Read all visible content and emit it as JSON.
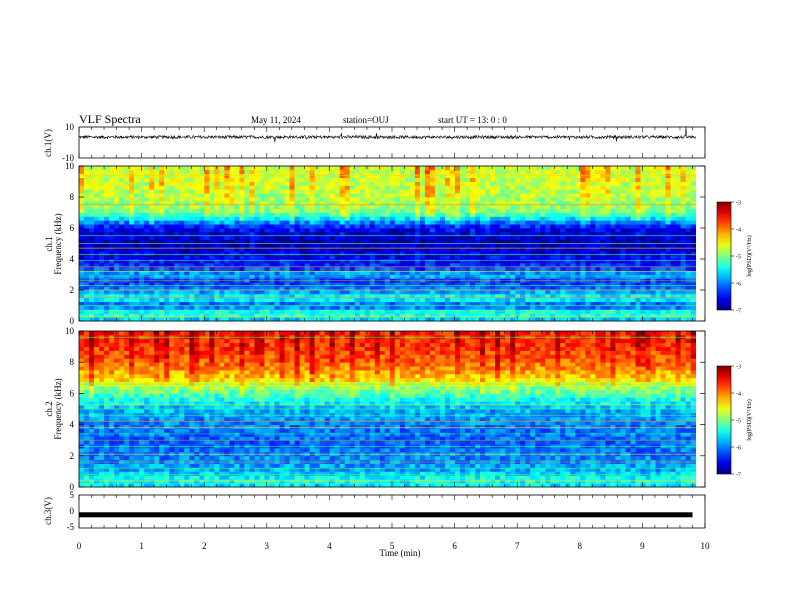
{
  "header": {
    "title": "VLF Spectra",
    "date": "May 11, 2024",
    "station": "station=OUJ",
    "start_label": "start  UT  =   13: 0   : 0"
  },
  "chart_data": [
    {
      "type": "line",
      "panel": "ch1-waveform",
      "ylabel": "ch.1(V)",
      "ylim": [
        -10,
        10
      ],
      "yticks": [
        "10",
        "-10"
      ],
      "xlim": [
        0,
        10
      ],
      "series": [
        {
          "values_description_level": 3.5,
          "noise_amplitude": 1
        }
      ],
      "color": "#000000"
    },
    {
      "type": "heatmap",
      "panel": "ch1-spectrogram",
      "ylabel_line1": "ch.1",
      "ylabel_line2": "Frequency (kHz)",
      "ylim": [
        0,
        10
      ],
      "yticks": [
        "0",
        "2",
        "4",
        "6",
        "8",
        "10"
      ],
      "xlim": [
        0,
        9.85
      ],
      "colorbar": {
        "label": "log(PSD)(V²/Hz)",
        "range": [
          -7,
          -3
        ],
        "ticks": [
          "-3",
          "-4",
          "-5",
          "-6",
          "-7"
        ]
      },
      "profile_kHz": [
        [
          0,
          -5.8
        ],
        [
          0.5,
          -5.2
        ],
        [
          1,
          -6.2
        ],
        [
          1.5,
          -5.4
        ],
        [
          2,
          -6.0
        ],
        [
          2.5,
          -6.3
        ],
        [
          3,
          -5.8
        ],
        [
          3.5,
          -6.3
        ],
        [
          4,
          -6.5
        ],
        [
          5,
          -6.8
        ],
        [
          6,
          -6.6
        ],
        [
          6.5,
          -5.8
        ],
        [
          7,
          -5.0
        ],
        [
          8,
          -4.8
        ],
        [
          9,
          -4.7
        ],
        [
          10,
          -4.7
        ]
      ],
      "lines_kHz": [
        0.3,
        0.6,
        1.0,
        1.5,
        2.0,
        2.3,
        2.6,
        2.9,
        3.2,
        3.5,
        3.9,
        4.3,
        4.7,
        5.0,
        5.5,
        7.5,
        9.4
      ]
    },
    {
      "type": "heatmap",
      "panel": "ch2-spectrogram",
      "ylabel_line1": "ch.2",
      "ylabel_line2": "Frequency (kHz)",
      "ylim": [
        0,
        10
      ],
      "yticks": [
        "0",
        "2",
        "4",
        "6",
        "8",
        "10"
      ],
      "xlim": [
        0,
        9.85
      ],
      "colorbar": {
        "label": "log(PSD)(V²/Hz)",
        "range": [
          -7,
          -3
        ],
        "ticks": [
          "-3",
          "-4",
          "-5",
          "-6",
          "-7"
        ]
      },
      "profile_kHz": [
        [
          0,
          -5.6
        ],
        [
          0.5,
          -5.4
        ],
        [
          1,
          -5.8
        ],
        [
          2,
          -6.0
        ],
        [
          3,
          -6.1
        ],
        [
          4,
          -6.0
        ],
        [
          5,
          -5.8
        ],
        [
          6,
          -5.2
        ],
        [
          6.5,
          -4.8
        ],
        [
          7,
          -4.3
        ],
        [
          8,
          -3.9
        ],
        [
          9,
          -3.7
        ],
        [
          10,
          -3.6
        ]
      ],
      "lines_kHz": [
        0.4,
        0.8,
        1.2,
        1.6,
        2.1,
        2.6,
        3.0,
        3.4,
        3.8,
        4.2,
        4.6,
        5.0,
        5.3,
        6.6,
        9.6
      ]
    },
    {
      "type": "line",
      "panel": "ch3-waveform",
      "ylabel": "ch.3(V)",
      "ylim": [
        -5,
        5
      ],
      "yticks": [
        "5",
        "0",
        "-5"
      ],
      "xlim": [
        0,
        10
      ],
      "xlabel": "Time (min)",
      "xticks": [
        "0",
        "1",
        "2",
        "3",
        "4",
        "5",
        "6",
        "7",
        "8",
        "9",
        "10"
      ],
      "series": [
        {
          "values_description_level": -1.0
        }
      ],
      "color": "#000000"
    }
  ]
}
